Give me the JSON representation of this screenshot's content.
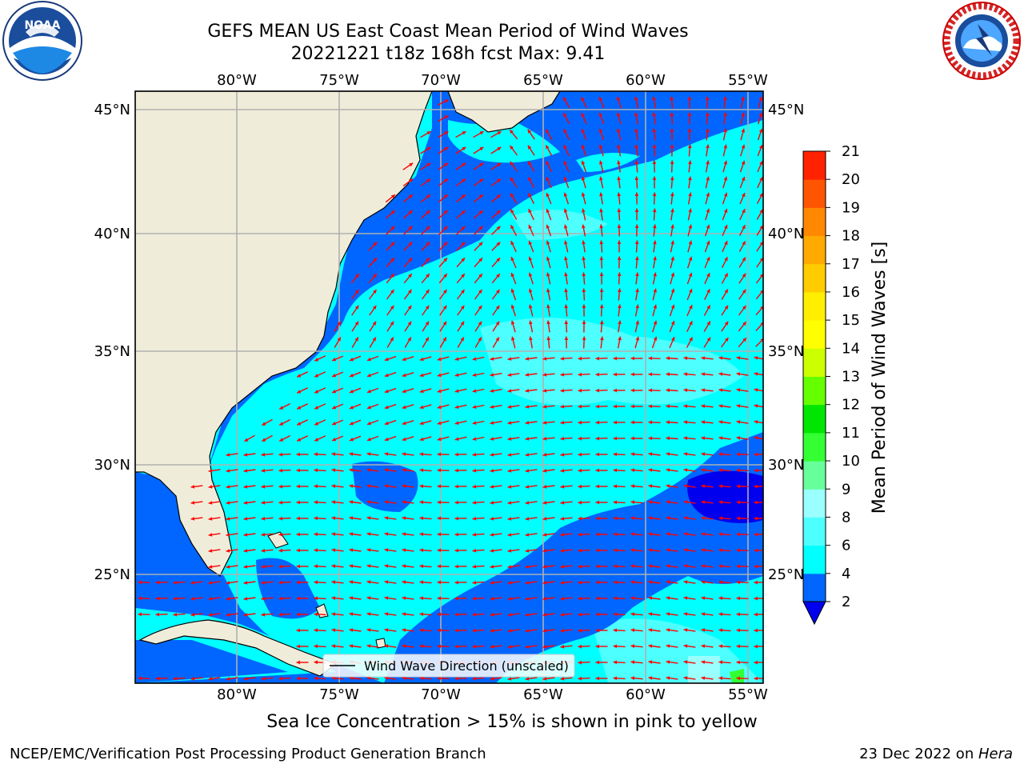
{
  "header": {
    "title_line1": "GEFS MEAN US East Coast Mean Period of Wind Waves",
    "title_line2": "20221221 t18z 168h fcst   Max: 9.41"
  },
  "logos": {
    "left": {
      "name": "noaa-logo",
      "text": "NOAA"
    },
    "right": {
      "name": "nws-logo",
      "text": "NATIONAL WEATHER SERVICE"
    }
  },
  "map": {
    "lon_labels": [
      "80°W",
      "75°W",
      "70°W",
      "65°W",
      "60°W",
      "55°W"
    ],
    "lat_labels": [
      "45°N",
      "40°N",
      "35°N",
      "30°N",
      "25°N"
    ],
    "legend_label": "Wind Wave Direction (unscaled)",
    "arrow_color": "#ff0000",
    "land_color": "#efedda"
  },
  "colorbar": {
    "label": "Mean Period of Wind Waves [s]",
    "ticks": [
      "2",
      "4",
      "6",
      "8",
      "9",
      "10",
      "11",
      "12",
      "13",
      "14",
      "15",
      "16",
      "17",
      "18",
      "19",
      "20",
      "21"
    ],
    "colors": [
      "#0066ff",
      "#00ffff",
      "#4dffff",
      "#99ffff",
      "#66ff99",
      "#33ff33",
      "#00e600",
      "#66ff00",
      "#ccff00",
      "#ffff00",
      "#ffee00",
      "#ffcc00",
      "#ffaa00",
      "#ff8800",
      "#ff5500",
      "#ff2200",
      "#ff0000"
    ],
    "under_color": "#0000ee"
  },
  "notes": {
    "ice": "Sea Ice Concentration > 15% is shown in pink to yellow"
  },
  "footer": {
    "left": "NCEP/EMC/Verification Post Processing Product Generation Branch",
    "right_date": "23 Dec 2022 on ",
    "right_host": "Hera"
  }
}
